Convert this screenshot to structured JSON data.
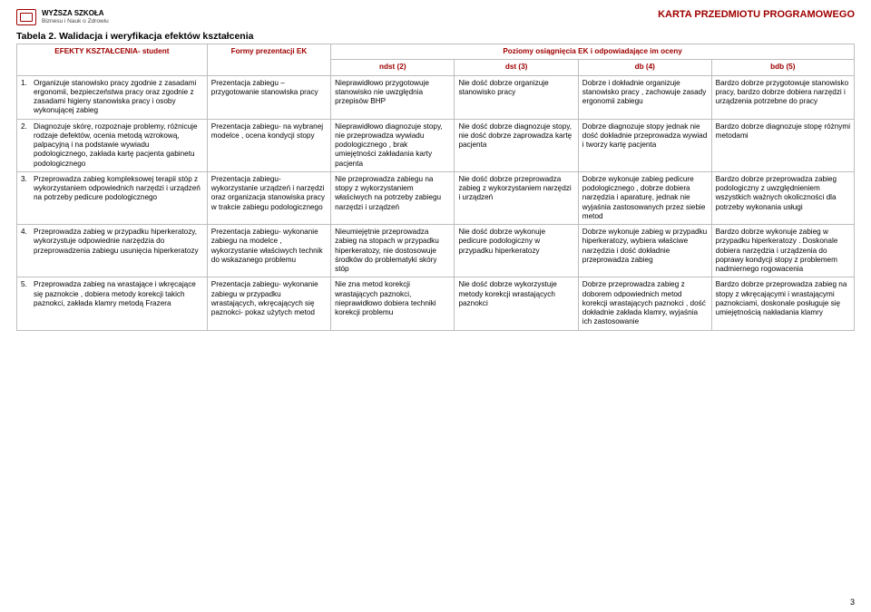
{
  "logo": {
    "line1": "WYŻSZA SZKOŁA",
    "line2": "Biznesu i Nauk o Zdrowiu"
  },
  "topTitle": "KARTA PRZEDMIOTU PROGRAMOWEGO",
  "tableTitle": "Tabela 2. Walidacja i weryfikacja efektów kształcenia",
  "headers": {
    "efekty": "EFEKTY KSZTAŁCENIA- student",
    "formy": "Formy prezentacji EK",
    "poziomy": "Poziomy osiągnięcia EK i odpowiadające im oceny",
    "ndst": "ndst (2)",
    "dst": "dst (3)",
    "db": "db (4)",
    "bdb": "bdb (5)"
  },
  "rows": [
    {
      "num": "1.",
      "efekt": "Organizuje stanowisko pracy zgodnie z zasadami ergonomii,  bezpieczeństwa pracy oraz zgodnie z zasadami higieny stanowiska pracy i osoby wykonującej zabieg",
      "formy": "Prezentacja zabiegu – przygotowanie stanowiska pracy",
      "ndst": "Nieprawidłowo przygotowuje stanowisko nie uwzględnia przepisów BHP",
      "dst": "Nie dość dobrze organizuje stanowisko pracy",
      "db": "Dobrze i dokładnie organizuje stanowisko pracy , zachowuje zasady ergonomii zabiegu",
      "bdb": "Bardzo dobrze przygotowuje stanowisko pracy, bardzo dobrze dobiera narzędzi i urządzenia potrzebne do pracy"
    },
    {
      "num": "2.",
      "efekt": "Diagnozuje skórę, rozpoznaje problemy, różnicuje rodzaje defektów, ocenia metodą wzrokową, palpacyjną i na podstawie wywiadu podologicznego, zakłada kartę pacjenta gabinetu podologicznego",
      "formy": "Prezentacja zabiegu- na wybranej modelce , ocena kondycji stopy",
      "ndst": "Nieprawidłowo diagnozuje stopy, nie przeprowadza wywiadu podologicznego , brak umiejętności zakładania karty pacjenta",
      "dst": "Nie dość dobrze diagnozuje stopy, nie dość dobrze zaprowadza kartę pacjenta",
      "db": "Dobrze diagnozuje stopy jednak nie dość dokładnie przeprowadza wywiad i tworzy kartę pacjenta",
      "bdb": "Bardzo dobrze diagnozuje stopę różnymi metodami"
    },
    {
      "num": "3.",
      "efekt": "Przeprowadza zabieg kompleksowej terapii stóp z wykorzystaniem odpowiednich narzędzi i urządzeń na potrzeby pedicure podologicznego",
      "formy": "Prezentacja zabiegu- wykorzystanie urządzeń i narzędzi oraz organizacja stanowiska pracy w trakcie zabiegu podologicznego",
      "ndst": "Nie przeprowadza zabiegu na stopy z wykorzystaniem właściwych na potrzeby zabiegu narzędzi i urządzeń",
      "dst": "Nie dość dobrze przeprowadza zabieg z wykorzystaniem narzędzi i urządzeń",
      "db": "Dobrze wykonuje zabieg pedicure podologicznego , dobrze dobiera narzędzia i aparaturę, jednak nie wyjaśnia zastosowanych przez siebie metod",
      "bdb": "Bardzo dobrze przeprowadza zabieg podologiczny z uwzględnieniem wszystkich ważnych okoliczności dla potrzeby wykonania usługi"
    },
    {
      "num": "4.",
      "efekt": "Przeprowadza zabieg w przypadku hiperkeratozy, wykorzystuje odpowiednie narzędzia do przeprowadzenia zabiegu usunięcia hiperkeratozy",
      "formy": "Prezentacja zabiegu- wykonanie zabiegu na modelce , wykorzystanie właściwych technik do wskazanego problemu",
      "ndst": "Nieumiejętnie przeprowadza zabieg na stopach w przypadku hiperkeratozy, nie dostosowuje środków do problematyki skóry stóp",
      "dst": "Nie dość dobrze wykonuje pedicure podologiczny w przypadku hiperkeratozy",
      "db": "Dobrze wykonuje zabieg w przypadku hiperkeratozy, wybiera właściwe narzędzia i dość dokładnie przeprowadza zabieg",
      "bdb": "Bardzo dobrze wykonuje zabieg w przypadku hiperkeratozy . Doskonale dobiera narzędzia i urządzenia do poprawy kondycji stopy z problemem nadmiernego rogowacenia"
    },
    {
      "num": "5.",
      "efekt": "Przeprowadza zabieg na wrastające i wkręcające się paznokcie , dobiera metody korekcji takich paznokci, zakłada klamry metodą Frazera",
      "formy": "Prezentacja zabiegu- wykonanie zabiegu w przypadku wrastających, wkręcających się paznokci- pokaz użytych metod",
      "ndst": "Nie zna metod korekcji wrastających paznokci, nieprawidłowo dobiera techniki korekcji problemu",
      "dst": "Nie dość dobrze wykorzystuje metody korekcji wrastających paznokci",
      "db": "Dobrze przeprowadza zabieg z doborem odpowiednich metod korekcji wrastających paznokci , dość dokładnie zakłada klamry, wyjaśnia ich zastosowanie",
      "bdb": "Bardzo dobrze przeprowadza zabieg na stopy z wkręcającymi i wrastającymi paznokciami, doskonale posługuje się umiejętnością nakładania klamry"
    }
  ],
  "pageNumber": "3"
}
